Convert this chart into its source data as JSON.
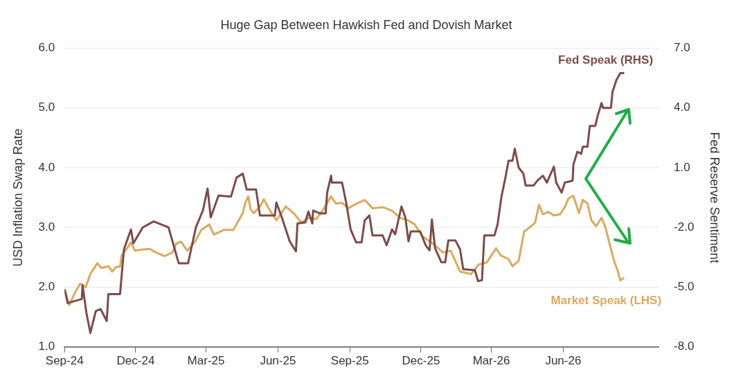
{
  "chart_data": {
    "type": "line",
    "title": "Huge Gap Between Hawkish Fed and Dovish Market",
    "ylabel": "USD Inflation Swap Rate",
    "y2label": "Fed Reserve Sentiment",
    "xlim": [
      "2024-09-01",
      "2026-10-01"
    ],
    "xticks": [
      {
        "value": "2024-09-01",
        "label": "Sep-24"
      },
      {
        "value": "2024-12-01",
        "label": "Dec-24"
      },
      {
        "value": "2025-03-01",
        "label": "Mar-25"
      },
      {
        "value": "2025-06-01",
        "label": "Jun-25"
      },
      {
        "value": "2025-09-01",
        "label": "Sep-25"
      },
      {
        "value": "2025-12-01",
        "label": "Dec-25"
      },
      {
        "value": "2026-03-01",
        "label": "Mar-26"
      },
      {
        "value": "2026-06-01",
        "label": "Jun-26"
      }
    ],
    "ylim": [
      1,
      6
    ],
    "yticks": [
      {
        "value": 1,
        "label": "1.0"
      },
      {
        "value": 2,
        "label": "2.0"
      },
      {
        "value": 3,
        "label": "3.0"
      },
      {
        "value": 4,
        "label": "4.0"
      },
      {
        "value": 5,
        "label": "5.0"
      },
      {
        "value": 6,
        "label": "6.0"
      }
    ],
    "y2lim": [
      -8,
      7
    ],
    "y2ticks": [
      {
        "value": -8,
        "label": "-8.0"
      },
      {
        "value": -5,
        "label": "-5.0"
      },
      {
        "value": -2,
        "label": "-2.0"
      },
      {
        "value": 1,
        "label": "1.0"
      },
      {
        "value": 4,
        "label": "4.0"
      },
      {
        "value": 7,
        "label": "7.0"
      }
    ],
    "grid": "y",
    "legend": false,
    "marker": "none",
    "line_style": "solid",
    "series": [
      {
        "name": "Fed Speak (RHS)",
        "color": "#7d4a4a",
        "axis": "y2",
        "x": [
          "2024-09-01",
          "2024-09-05",
          "2024-09-23",
          "2024-09-24",
          "2024-09-29",
          "2024-10-04",
          "2024-10-11",
          "2024-10-17",
          "2024-10-25",
          "2024-10-27",
          "2024-11-11",
          "2024-11-16",
          "2024-11-25",
          "2024-11-28",
          "2024-12-10",
          "2024-12-24",
          "2025-01-12",
          "2025-01-25",
          "2025-02-06",
          "2025-02-16",
          "2025-02-25",
          "2025-03-03",
          "2025-03-07",
          "2025-03-17",
          "2025-04-02",
          "2025-04-09",
          "2025-04-17",
          "2025-04-22",
          "2025-05-04",
          "2025-05-09",
          "2025-05-28",
          "2025-05-30",
          "2025-06-06",
          "2025-06-16",
          "2025-06-24",
          "2025-06-26",
          "2025-07-06",
          "2025-07-10",
          "2025-07-15",
          "2025-07-16",
          "2025-07-25",
          "2025-08-01",
          "2025-08-03",
          "2025-08-08",
          "2025-08-09",
          "2025-08-22",
          "2025-08-27",
          "2025-09-02",
          "2025-09-09",
          "2025-09-16",
          "2025-09-20",
          "2025-09-26",
          "2025-09-30",
          "2025-10-13",
          "2025-10-18",
          "2025-10-25",
          "2025-10-29",
          "2025-11-06",
          "2025-11-11",
          "2025-11-15",
          "2025-11-18",
          "2025-11-30",
          "2025-12-07",
          "2025-12-12",
          "2025-12-15",
          "2025-12-19",
          "2025-12-27",
          "2026-01-01",
          "2026-01-05",
          "2026-01-14",
          "2026-01-20",
          "2026-01-24",
          "2026-02-08",
          "2026-02-12",
          "2026-02-17",
          "2026-02-20",
          "2026-03-05",
          "2026-03-09",
          "2026-03-14",
          "2026-03-19",
          "2026-03-23",
          "2026-03-28",
          "2026-03-31",
          "2026-04-05",
          "2026-04-11",
          "2026-04-14",
          "2026-04-24",
          "2026-04-29",
          "2026-05-06",
          "2026-05-11",
          "2026-05-20",
          "2026-05-23",
          "2026-05-30",
          "2026-06-03",
          "2026-06-13",
          "2026-06-14",
          "2026-06-19",
          "2026-06-24",
          "2026-06-26",
          "2026-07-02",
          "2026-07-05",
          "2026-07-12",
          "2026-07-15",
          "2026-07-20",
          "2026-07-22",
          "2026-08-01",
          "2026-08-03",
          "2026-08-08",
          "2026-08-13",
          "2026-08-18"
        ],
        "values": [
          -5.1,
          -5.8,
          -5.6,
          -4.9,
          -6.3,
          -7.3,
          -6.2,
          -6.1,
          -6.7,
          -5.35,
          -5.35,
          -3.1,
          -2.1,
          -2.8,
          -2.0,
          -1.7,
          -2.0,
          -3.8,
          -3.8,
          -2.0,
          -1.15,
          -0.05,
          -1.5,
          -0.4,
          -0.45,
          0.5,
          0.7,
          -0.1,
          -0.1,
          -1.4,
          -1.4,
          -0.75,
          -1.5,
          -2.7,
          -3.2,
          -1.8,
          -1.75,
          -1.2,
          -1.8,
          -1.15,
          -1.3,
          -1.3,
          -0.25,
          0.6,
          0.25,
          0.25,
          -0.7,
          -2.1,
          -2.75,
          -2.75,
          -1.65,
          -1.4,
          -2.4,
          -2.4,
          -2.9,
          -2.1,
          -2.35,
          -0.95,
          -1.5,
          -2.7,
          -2.2,
          -2.2,
          -2.9,
          -3.15,
          -1.6,
          -3.05,
          -3.75,
          -3.75,
          -2.65,
          -2.65,
          -3.1,
          -4.1,
          -4.15,
          -4.7,
          -4.65,
          -2.4,
          -2.4,
          -1.85,
          -0.45,
          0.5,
          1.35,
          1.35,
          1.95,
          1.0,
          0.7,
          0.1,
          0.1,
          0.35,
          0.6,
          0.25,
          1.05,
          0.25,
          -0.25,
          0.25,
          0.35,
          1.15,
          1.8,
          1.7,
          2.05,
          2.05,
          3.1,
          3.1,
          3.6,
          4.25,
          4.0,
          4.0,
          4.8,
          5.4,
          5.75,
          5.75
        ]
      },
      {
        "name": "Market Speak (LHS)",
        "color": "#d9aa5f",
        "x": [
          "2024-09-01",
          "2024-09-07",
          "2024-09-14",
          "2024-09-21",
          "2024-09-28",
          "2024-10-04",
          "2024-10-13",
          "2024-10-18",
          "2024-10-27",
          "2024-11-01",
          "2024-11-06",
          "2024-11-11",
          "2024-11-13",
          "2024-11-20",
          "2024-11-25",
          "2024-11-30",
          "2024-12-10",
          "2024-12-19",
          "2024-12-27",
          "2025-01-07",
          "2025-01-17",
          "2025-01-22",
          "2025-01-28",
          "2025-02-05",
          "2025-02-15",
          "2025-02-23",
          "2025-03-05",
          "2025-03-11",
          "2025-03-24",
          "2025-04-05",
          "2025-04-17",
          "2025-04-20",
          "2025-04-24",
          "2025-04-27",
          "2025-05-01",
          "2025-05-09",
          "2025-05-14",
          "2025-05-21",
          "2025-05-30",
          "2025-06-11",
          "2025-06-21",
          "2025-07-01",
          "2025-07-10",
          "2025-07-20",
          "2025-07-29",
          "2025-08-08",
          "2025-08-14",
          "2025-08-22",
          "2025-08-30",
          "2025-09-07",
          "2025-09-20",
          "2025-09-30",
          "2025-10-13",
          "2025-10-25",
          "2025-11-04",
          "2025-11-14",
          "2025-11-23",
          "2025-12-03",
          "2025-12-16",
          "2025-12-29",
          "2026-01-08",
          "2026-01-20",
          "2026-02-03",
          "2026-02-13",
          "2026-02-23",
          "2026-03-07",
          "2026-03-13",
          "2026-03-23",
          "2026-03-28",
          "2026-04-05",
          "2026-04-12",
          "2026-04-21",
          "2026-04-26",
          "2026-05-01",
          "2026-05-06",
          "2026-05-13",
          "2026-05-20",
          "2026-05-28",
          "2026-06-03",
          "2026-06-08",
          "2026-06-14",
          "2026-06-21",
          "2026-06-26",
          "2026-07-02",
          "2026-07-07",
          "2026-07-13",
          "2026-07-20",
          "2026-07-25",
          "2026-07-31",
          "2026-08-05",
          "2026-08-10",
          "2026-08-13",
          "2026-08-18"
        ],
        "values": [
          1.96,
          1.7,
          1.9,
          2.06,
          2.0,
          2.22,
          2.4,
          2.32,
          2.35,
          2.26,
          2.34,
          2.34,
          2.53,
          2.65,
          2.75,
          2.61,
          2.63,
          2.64,
          2.58,
          2.52,
          2.58,
          2.73,
          2.76,
          2.61,
          2.76,
          2.96,
          3.05,
          2.88,
          2.96,
          2.96,
          3.24,
          3.4,
          3.52,
          3.3,
          3.24,
          3.35,
          3.47,
          3.3,
          3.12,
          3.35,
          3.24,
          3.08,
          3.16,
          3.14,
          3.3,
          3.52,
          3.4,
          3.41,
          3.32,
          3.38,
          3.46,
          3.32,
          3.34,
          3.28,
          3.16,
          3.12,
          3.05,
          2.85,
          2.73,
          2.58,
          2.61,
          2.26,
          2.22,
          2.38,
          2.41,
          2.65,
          2.53,
          2.47,
          2.35,
          2.44,
          2.93,
          3.02,
          3.08,
          3.38,
          3.22,
          3.26,
          3.2,
          3.22,
          3.34,
          3.49,
          3.53,
          3.24,
          3.46,
          3.4,
          3.12,
          3.02,
          3.16,
          3.0,
          2.69,
          2.44,
          2.26,
          2.11,
          2.16
        ]
      }
    ]
  }
}
